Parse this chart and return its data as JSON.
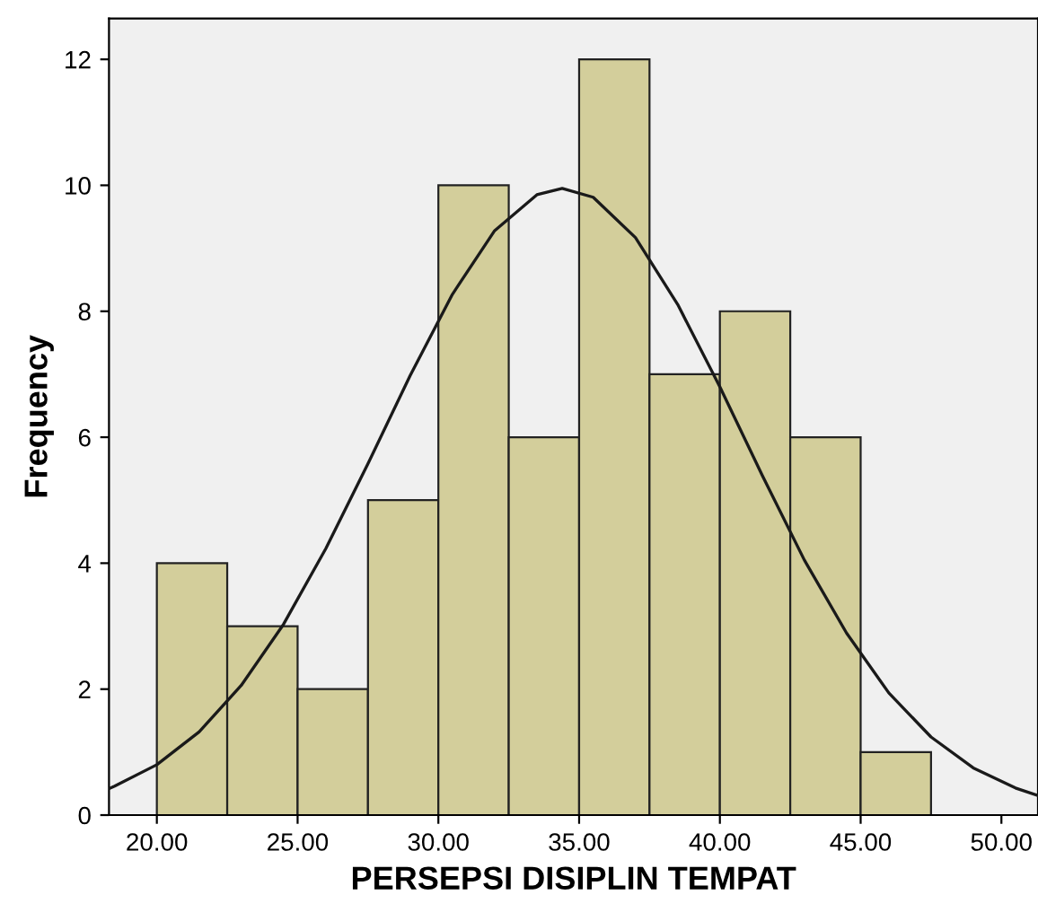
{
  "chart_data": {
    "type": "histogram",
    "xlabel": "PERSEPSI DISIPLIN TEMPAT",
    "ylabel": "Frequency",
    "bins": [
      20,
      22.5,
      25,
      27.5,
      30,
      32.5,
      35,
      37.5,
      40,
      42.5,
      45,
      47.5
    ],
    "values": [
      4,
      3,
      2,
      5,
      10,
      6,
      12,
      7,
      8,
      6,
      1
    ],
    "color": "#d3ce9b",
    "series": [
      {
        "type": "line",
        "color": "#1a1a1a",
        "x": [
          18.3,
          18.5,
          20,
          21.5,
          23,
          24.5,
          26,
          27.5,
          29,
          30.5,
          32,
          33.5,
          34.4,
          35.5,
          37,
          38.5,
          40,
          41.5,
          43,
          44.5,
          46,
          47.5,
          49,
          50.5,
          51.3
        ],
        "values": [
          0.42,
          0.46,
          0.8,
          1.32,
          2.06,
          3.03,
          4.23,
          5.58,
          6.98,
          8.27,
          9.28,
          9.85,
          9.95,
          9.81,
          9.17,
          8.11,
          6.8,
          5.4,
          4.05,
          2.89,
          1.94,
          1.24,
          0.75,
          0.43,
          0.31
        ]
      }
    ],
    "xlim": [
      18.3,
      51.3
    ],
    "ylim": [
      0,
      12.65
    ],
    "xticks": [
      {
        "value": 20,
        "label": "20.00"
      },
      {
        "value": 25,
        "label": "25.00"
      },
      {
        "value": 30,
        "label": "30.00"
      },
      {
        "value": 35,
        "label": "35.00"
      },
      {
        "value": 40,
        "label": "40.00"
      },
      {
        "value": 45,
        "label": "45.00"
      },
      {
        "value": 50,
        "label": "50.00"
      }
    ],
    "yticks": [
      0,
      2,
      4,
      6,
      8,
      10,
      12
    ],
    "grid": false
  }
}
